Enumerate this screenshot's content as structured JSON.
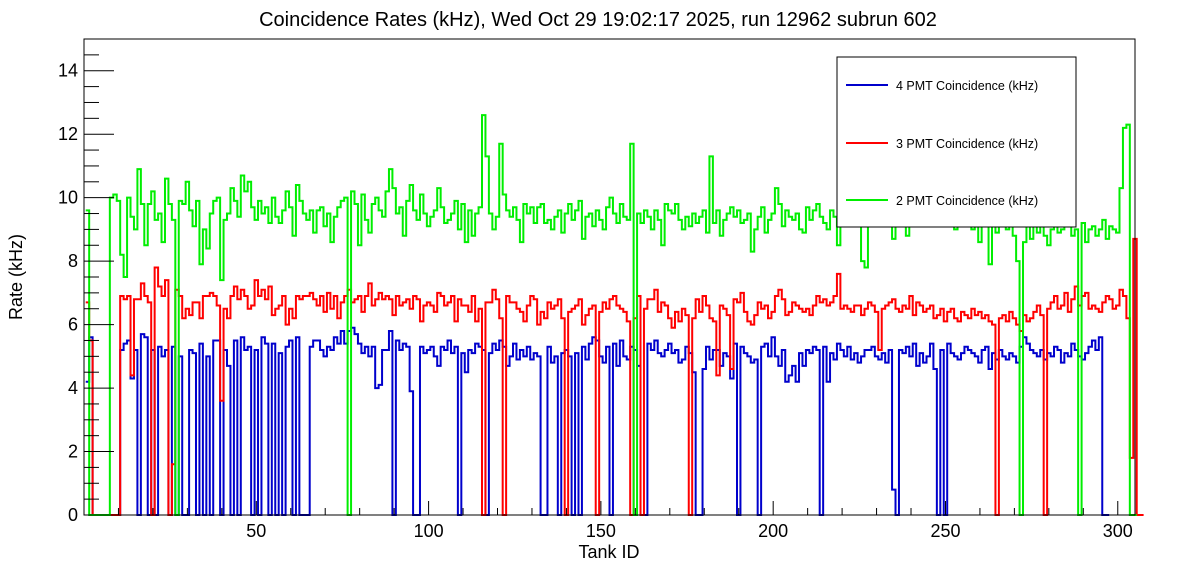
{
  "chart_data": {
    "type": "line",
    "title": "Coincidence Rates (kHz), Wed Oct 29 19:02:17 2025, run 12962 subrun 602",
    "xlabel": "Tank ID",
    "ylabel": "Rate (kHz)",
    "xlim": [
      0,
      305
    ],
    "ylim": [
      0,
      15
    ],
    "x_ticks": [
      50,
      100,
      150,
      200,
      250,
      300
    ],
    "y_ticks": [
      0,
      2,
      4,
      6,
      8,
      10,
      12,
      14
    ],
    "grid": false,
    "legend_position": "top-right",
    "x_start": 1,
    "series": [
      {
        "name": "4 PMT Coincidence (kHz)",
        "color": "#0000cc",
        "values": [
          4.2,
          5.6,
          0,
          0,
          0,
          0,
          0,
          0,
          0,
          0,
          5.2,
          5.4,
          5.5,
          4.3,
          5.2,
          0,
          5.7,
          5.6,
          0,
          5.2,
          0,
          5.3,
          5.0,
          5.2,
          0,
          5.3,
          0,
          5.0,
          0,
          0,
          5.2,
          5.1,
          0,
          5.4,
          0,
          5.0,
          0,
          5.5,
          5.5,
          0,
          5.2,
          4.7,
          0,
          5.5,
          0,
          5.6,
          5.2,
          5.3,
          0,
          5.2,
          0,
          5.6,
          5.4,
          0,
          5.4,
          0,
          5.1,
          0,
          5.3,
          5.5,
          0,
          5.6,
          0,
          0,
          0,
          5.3,
          5.5,
          5.5,
          5.2,
          5.0,
          5.3,
          5.2,
          5.6,
          5.4,
          5.8,
          5.4,
          5.8,
          5.9,
          5.7,
          5.4,
          5.1,
          5.3,
          5.0,
          5.3,
          4.0,
          4.1,
          5.2,
          5.2,
          5.8,
          0,
          5.5,
          5.2,
          5.4,
          5.3,
          3.9,
          0,
          0,
          5.3,
          5.1,
          5.2,
          5.3,
          5.0,
          4.7,
          5.3,
          5.2,
          5.5,
          5.1,
          5.3,
          0,
          5.1,
          4.5,
          5.2,
          5.1,
          5.4,
          5.3,
          5.2,
          0,
          5.1,
          5.4,
          5.2,
          5.5,
          5.3,
          4.7,
          5.0,
          5.4,
          4.9,
          5.2,
          5.0,
          5.3,
          4.9,
          5.1,
          5.0,
          0,
          0,
          5.3,
          4.8,
          5.0,
          0,
          5.1,
          5.2,
          5.0,
          0,
          5.1,
          0,
          5.3,
          4.9,
          5.4,
          5.6,
          5.5,
          5.0,
          4.8,
          5.3,
          0,
          5.4,
          4.7,
          5.5,
          5.0,
          4.9,
          5.3,
          5.2,
          4.7,
          0,
          0,
          5.4,
          5.2,
          5.5,
          5.1,
          5.0,
          5.2,
          5.4,
          5.1,
          5.2,
          4.8,
          4.9,
          5.3,
          5.1,
          4.5,
          0,
          0,
          4.6,
          5.3,
          4.9,
          5.2,
          5.2,
          4.7,
          5.1,
          5.0,
          4.3,
          5.4,
          0,
          5.3,
          5.1,
          5.0,
          4.8,
          4.9,
          0,
          5.3,
          5.4,
          5.0,
          5.6,
          5.0,
          4.7,
          5.2,
          4.2,
          4.4,
          4.7,
          4.2,
          5.1,
          4.7,
          5.2,
          5.1,
          5.3,
          5.2,
          0,
          5.3,
          4.2,
          5.1,
          4.9,
          5.4,
          5.2,
          5.0,
          5.3,
          4.9,
          5.1,
          4.8,
          5.0,
          5.2,
          5.2,
          5.3,
          5.0,
          4.9,
          5.1,
          4.8,
          5.2,
          0.8,
          0,
          5.2,
          5.1,
          5.3,
          5.0,
          5.4,
          4.7,
          5.1,
          4.8,
          5.0,
          5.4,
          4.6,
          0,
          5.2,
          0,
          5.4,
          5.1,
          5.0,
          4.9,
          5.1,
          5.3,
          5.2,
          5.1,
          5.0,
          4.8,
          5.2,
          5.3,
          4.6,
          5.1,
          4.9,
          5.2,
          5.0,
          4.9,
          5.1,
          5.0,
          4.8,
          5.3,
          5.6,
          5.4,
          5.2,
          5.1,
          5.0,
          5.2,
          4.9,
          5.1,
          5.0,
          5.3,
          5.2,
          4.8,
          5.1,
          5.0,
          5.4,
          5.2,
          5.0,
          4.9,
          5.1,
          5.3,
          5.5,
          5.2,
          5.6,
          0,
          0
        ]
      },
      {
        "name": "3 PMT Coincidence (kHz)",
        "color": "#ff0000",
        "values": [
          6.7,
          5.5,
          0,
          0,
          0,
          0,
          0,
          0,
          0,
          0,
          6.9,
          6.8,
          6.9,
          4.4,
          6.8,
          6.8,
          7.3,
          6.9,
          6.7,
          0,
          7.8,
          7.2,
          6.9,
          7.4,
          0,
          1.6,
          7.1,
          6.9,
          6.2,
          6.5,
          6.3,
          6.7,
          6.7,
          6.2,
          6.9,
          6.9,
          7.0,
          6.9,
          6.6,
          3.6,
          6.5,
          6.2,
          6.9,
          7.2,
          6.8,
          7.1,
          6.9,
          6.5,
          6.6,
          7.4,
          6.9,
          7.1,
          6.8,
          7.2,
          6.3,
          6.5,
          6.6,
          6.9,
          6.0,
          6.5,
          6.2,
          6.9,
          6.8,
          6.9,
          6.9,
          7.0,
          6.8,
          6.6,
          6.9,
          6.4,
          7.0,
          6.5,
          6.9,
          6.2,
          6.7,
          6.9,
          7.1,
          6.7,
          6.8,
          6.9,
          6.4,
          6.9,
          7.3,
          6.6,
          6.8,
          7.0,
          6.8,
          6.9,
          6.8,
          6.3,
          6.9,
          6.6,
          6.7,
          6.8,
          6.5,
          6.9,
          6.8,
          6.1,
          6.6,
          6.7,
          6.6,
          6.4,
          7.0,
          6.9,
          6.6,
          6.7,
          6.9,
          6.1,
          6.8,
          6.6,
          6.6,
          6.4,
          6.9,
          6.1,
          6.5,
          0,
          6.7,
          6.7,
          7.1,
          6.8,
          6.2,
          0,
          6.9,
          6.7,
          6.7,
          6.5,
          6.4,
          6.1,
          6.6,
          6.9,
          6.8,
          6.0,
          6.4,
          6.2,
          6.7,
          6.5,
          6.6,
          6.8,
          6.2,
          0,
          6.4,
          6.5,
          6.6,
          6.8,
          6.0,
          6.3,
          6.5,
          6.6,
          0,
          6.4,
          6.7,
          6.5,
          6.8,
          6.9,
          6.6,
          6.5,
          6.4,
          6.1,
          0,
          6.2,
          6.9,
          0,
          6.5,
          6.8,
          6.8,
          7.1,
          6.4,
          6.7,
          6.6,
          6.2,
          5.9,
          6.4,
          6.1,
          6.5,
          6.3,
          0,
          6.2,
          6.8,
          6.4,
          6.9,
          6.6,
          6.2,
          6.1,
          4.4,
          6.6,
          6.5,
          6.3,
          4.6,
          6.8,
          6.7,
          7.0,
          6.4,
          6.1,
          6.0,
          6.3,
          6.7,
          6.5,
          6.6,
          6.2,
          6.4,
          6.9,
          7.1,
          6.8,
          6.3,
          6.4,
          6.7,
          6.6,
          6.5,
          6.4,
          6.5,
          6.3,
          6.6,
          6.9,
          6.7,
          6.8,
          6.6,
          6.7,
          6.9,
          7.6,
          6.5,
          6.6,
          6.5,
          6.4,
          6.6,
          6.6,
          6.3,
          6.5,
          6.7,
          6.6,
          6.4,
          5.2,
          6.5,
          6.6,
          6.7,
          6.8,
          6.5,
          6.4,
          6.6,
          6.5,
          6.9,
          6.3,
          6.7,
          6.6,
          6.4,
          6.5,
          6.6,
          6.2,
          6.3,
          6.5,
          6.1,
          6.4,
          6.5,
          6.2,
          6.1,
          6.4,
          6.3,
          6.2,
          6.5,
          6.3,
          6.4,
          6.2,
          6.3,
          6.1,
          6.0,
          0,
          6.2,
          6.3,
          6.1,
          6.4,
          6.2,
          6.0,
          5.8,
          6.3,
          6.1,
          6.2,
          6.4,
          6.6,
          6.3,
          0,
          6.5,
          6.7,
          6.9,
          6.5,
          6.6,
          7.0,
          6.4,
          6.8,
          7.2,
          6.6,
          6.9,
          7.0,
          6.5,
          6.6,
          6.5,
          6.4,
          6.7,
          6.9,
          6.8,
          6.5,
          6.6,
          7.1,
          6.9,
          6.2,
          1.8,
          8.7,
          0,
          0
        ]
      },
      {
        "name": "2 PMT Coincidence (kHz)",
        "color": "#00ee00",
        "values": [
          9.6,
          0,
          0,
          0,
          0,
          0,
          0,
          10.0,
          10.1,
          9.9,
          8.2,
          7.5,
          10.0,
          9.4,
          9.0,
          10.9,
          9.8,
          8.5,
          9.8,
          10.2,
          9.3,
          9.5,
          8.6,
          10.6,
          9.8,
          9.3,
          0,
          9.9,
          9.8,
          10.5,
          9.6,
          9.1,
          9.9,
          7.9,
          9.0,
          8.4,
          9.5,
          9.9,
          10.0,
          7.4,
          9.3,
          9.5,
          10.3,
          9.9,
          9.4,
          10.7,
          10.2,
          10.5,
          9.7,
          9.3,
          9.9,
          9.5,
          9.7,
          9.2,
          10.0,
          9.4,
          9.2,
          9.6,
          10.2,
          9.7,
          8.8,
          10.4,
          9.9,
          9.5,
          9.3,
          9.6,
          8.9,
          9.6,
          9.7,
          9.1,
          9.5,
          8.6,
          9.4,
          9.7,
          9.9,
          10.0,
          0,
          10.2,
          9.8,
          8.5,
          10.1,
          9.3,
          8.9,
          9.8,
          10.0,
          9.6,
          9.4,
          10.2,
          10.9,
          10.3,
          9.5,
          9.7,
          8.8,
          9.9,
          10.4,
          9.6,
          9.3,
          10.1,
          9.5,
          9.1,
          9.4,
          9.6,
          10.3,
          9.7,
          9.2,
          9.3,
          9.5,
          9.9,
          9.0,
          9.8,
          8.6,
          9.6,
          8.8,
          9.5,
          9.7,
          12.6,
          11.3,
          9.5,
          9.0,
          9.4,
          11.7,
          10.1,
          9.6,
          9.4,
          9.7,
          9.3,
          8.6,
          9.8,
          9.5,
          9.7,
          9.2,
          9.7,
          9.8,
          9.2,
          9.3,
          9.0,
          9.4,
          9.6,
          8.9,
          9.5,
          9.8,
          9.3,
          9.6,
          9.9,
          8.7,
          9.4,
          9.5,
          9.1,
          9.6,
          9.3,
          9.0,
          9.7,
          10.0,
          9.5,
          9.2,
          9.8,
          9.4,
          9.3,
          11.7,
          0,
          9.5,
          9.2,
          9.6,
          9.4,
          9.0,
          9.6,
          9.3,
          8.5,
          9.8,
          9.6,
          9.5,
          9.8,
          9.3,
          9.0,
          9.4,
          9.1,
          9.5,
          9.2,
          9.4,
          9.6,
          8.9,
          11.3,
          9.2,
          9.6,
          8.8,
          9.3,
          9.5,
          9.7,
          9.4,
          9.6,
          9.2,
          9.3,
          9.5,
          8.3,
          9.0,
          9.4,
          9.7,
          8.9,
          9.3,
          9.5,
          10.3,
          9.8,
          9.1,
          9.6,
          9.4,
          9.3,
          9.5,
          9.0,
          8.9,
          9.7,
          9.3,
          9.6,
          9.8,
          9.4,
          9.2,
          9.0,
          9.6,
          9.4,
          8.5,
          9.6,
          9.7,
          9.2,
          9.3,
          9.4,
          9.6,
          8.0,
          7.8,
          9.2,
          9.5,
          9.3,
          9.1,
          9.2,
          9.5,
          9.4,
          8.7,
          9.3,
          9.1,
          9.5,
          8.8,
          9.6,
          9.4,
          9.2,
          9.5,
          9.1,
          9.2,
          9.4,
          9.3,
          9.5,
          9.2,
          9.1,
          9.3,
          9.4,
          9.0,
          9.2,
          9.3,
          9.1,
          9.4,
          9.0,
          9.6,
          8.6,
          9.1,
          9.4,
          7.9,
          9.2,
          8.9,
          9.3,
          9.5,
          9.0,
          9.4,
          8.8,
          8.0,
          0,
          8.6,
          9.3,
          8.7,
          9.1,
          8.9,
          9.2,
          8.8,
          8.5,
          9.0,
          9.2,
          8.9,
          9.0,
          9.3,
          9.1,
          8.8,
          9.0,
          0,
          9.2,
          8.6,
          9.0,
          9.1,
          8.8,
          9.0,
          9.3,
          8.7,
          9.1,
          9.0,
          8.9,
          10.3,
          12.2,
          12.3,
          0,
          0
        ]
      }
    ]
  }
}
